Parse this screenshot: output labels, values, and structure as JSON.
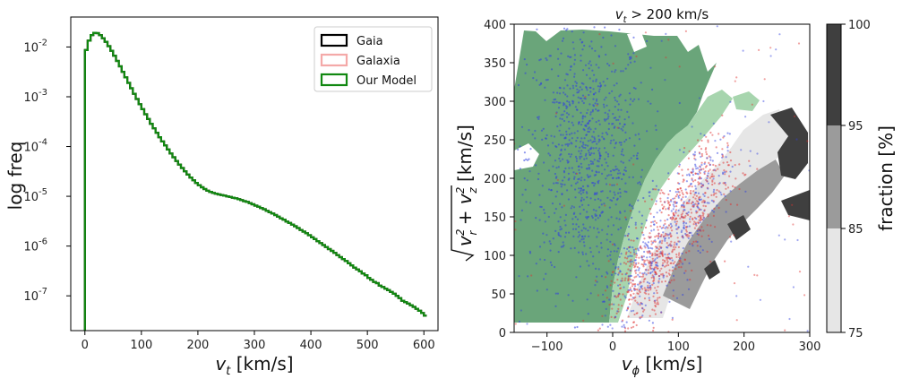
{
  "chart_data": [
    {
      "type": "line",
      "subtype": "step-histogram",
      "title": "",
      "xlabel_var": "v",
      "xlabel_sub": "t",
      "xlabel_unit": " [km/s]",
      "ylabel": "log freq",
      "xlim": [
        -25,
        625
      ],
      "ylim": [
        2e-08,
        0.04
      ],
      "yscale": "log",
      "grid": false,
      "legend_position": "top-right",
      "xticks": [
        0,
        100,
        200,
        300,
        400,
        500,
        600
      ],
      "yticks": [
        {
          "exp": -7,
          "label": "10",
          "sup": "-7"
        },
        {
          "exp": -6,
          "label": "10",
          "sup": "-6"
        },
        {
          "exp": -5,
          "label": "10",
          "sup": "-5"
        },
        {
          "exp": -4,
          "label": "10",
          "sup": "-4"
        },
        {
          "exp": -3,
          "label": "10",
          "sup": "-3"
        },
        {
          "exp": -2,
          "label": "10",
          "sup": "-2"
        }
      ],
      "series": [
        {
          "name": "Gaia",
          "color": "#000000",
          "x": [
            0,
            5,
            10,
            15,
            20,
            25,
            30,
            35,
            40,
            45,
            50,
            55,
            60,
            65,
            70,
            75,
            80,
            85,
            90,
            95,
            100,
            105,
            110,
            115,
            120,
            125,
            130,
            135,
            140,
            145,
            150,
            155,
            160,
            165,
            170,
            175,
            180,
            185,
            190,
            195,
            200,
            205,
            210,
            215,
            220,
            225,
            230,
            235,
            240,
            245,
            250,
            255,
            260,
            265,
            270,
            275,
            280,
            285,
            290,
            295,
            300,
            305,
            310,
            315,
            320,
            325,
            330,
            335,
            340,
            345,
            350,
            355,
            360,
            365,
            370,
            375,
            380,
            385,
            390,
            395,
            400,
            405,
            410,
            415,
            420,
            425,
            430,
            435,
            440,
            445,
            450,
            455,
            460,
            465,
            470,
            475,
            480,
            485,
            490,
            495,
            500,
            505,
            510,
            515,
            520,
            525,
            530,
            535,
            540,
            545,
            550,
            555,
            560,
            565,
            570,
            575,
            580,
            585,
            590,
            595,
            600
          ],
          "y": [
            0.00868,
            0.0134,
            0.0174,
            0.0193,
            0.019,
            0.0173,
            0.015,
            0.0127,
            0.0104,
            0.00839,
            0.00667,
            0.00525,
            0.00409,
            0.00317,
            0.00245,
            0.0019,
            0.00148,
            0.00115,
            0.000902,
            0.000709,
            0.000561,
            0.000446,
            0.000357,
            0.000287,
            0.000232,
            0.000189,
            0.000154,
            0.000127,
            0.000105,
            8.7e-05,
            7.25e-05,
            6.08e-05,
            5.12e-05,
            4.34e-05,
            3.7e-05,
            3.17e-05,
            2.74e-05,
            2.39e-05,
            2.1e-05,
            1.86e-05,
            1.67e-05,
            1.52e-05,
            1.4e-05,
            1.3e-05,
            1.23e-05,
            1.17e-05,
            1.13e-05,
            1.09e-05,
            1.06e-05,
            1.03e-05,
            1e-05,
            9.7e-06,
            9.4e-06,
            9.1e-06,
            8.7e-06,
            8.4e-06,
            8e-06,
            7.7e-06,
            7.3e-06,
            6.9e-06,
            6.5e-06,
            6.2e-06,
            5.8e-06,
            5.5e-06,
            5.1e-06,
            4.8e-06,
            4.5e-06,
            4.2e-06,
            3.9e-06,
            3.6e-06,
            3.4e-06,
            3.1e-06,
            2.9e-06,
            2.7e-06,
            2.5e-06,
            2.3e-06,
            2.1e-06,
            1.95e-06,
            1.8e-06,
            1.65e-06,
            1.5e-06,
            1.38e-06,
            1.26e-06,
            1.15e-06,
            1.05e-06,
            9.6e-07,
            8.7e-07,
            8e-07,
            7.3e-07,
            6.6e-07,
            6e-07,
            5.5e-07,
            5e-07,
            4.5e-07,
            4.1e-07,
            3.7e-07,
            3.4e-07,
            3.1e-07,
            2.8e-07,
            2.6e-07,
            2.3e-07,
            2.1e-07,
            1.9e-07,
            1.8e-07,
            1.6e-07,
            1.5e-07,
            1.4e-07,
            1.3e-07,
            1.2e-07,
            1.1e-07,
            1e-07,
            9e-08,
            8e-08,
            7.5e-08,
            7e-08,
            6.5e-08,
            6e-08,
            5.5e-08,
            5e-08,
            4.5e-08,
            4e-08
          ]
        },
        {
          "name": "Galaxia",
          "color": "#f4a9a8",
          "x": [
            0,
            5,
            10,
            15,
            20,
            25,
            30,
            35,
            40,
            45,
            50,
            55,
            60,
            65,
            70,
            75,
            80,
            85,
            90,
            95,
            100,
            105,
            110,
            115,
            120,
            125,
            130,
            135,
            140,
            145,
            150,
            155,
            160,
            165,
            170,
            175,
            180,
            185,
            190,
            195,
            200,
            205,
            210,
            215,
            220,
            225,
            230,
            235,
            240,
            245,
            250,
            255,
            260,
            265,
            270,
            275,
            280,
            285,
            290,
            295,
            300,
            305,
            310,
            315,
            320,
            325,
            330,
            335,
            340,
            345,
            350,
            355,
            360,
            365,
            370,
            375,
            380,
            385,
            390,
            395,
            400,
            405,
            410,
            415,
            420,
            425,
            430,
            435,
            440,
            445,
            450,
            455,
            460,
            465,
            470,
            475,
            480,
            485,
            490,
            495,
            500,
            505,
            510,
            515,
            520,
            525,
            530,
            535,
            540,
            545,
            550,
            555,
            560,
            565,
            570,
            575,
            580,
            585,
            590,
            595,
            600
          ],
          "y": [
            0.00868,
            0.0134,
            0.0174,
            0.0193,
            0.019,
            0.0173,
            0.015,
            0.0127,
            0.0104,
            0.00839,
            0.00667,
            0.00525,
            0.00409,
            0.00317,
            0.00245,
            0.0019,
            0.00148,
            0.00115,
            0.000902,
            0.000709,
            0.000561,
            0.000446,
            0.000357,
            0.000287,
            0.000232,
            0.000189,
            0.000154,
            0.000127,
            0.000105,
            8.7e-05,
            7.25e-05,
            6.08e-05,
            5.12e-05,
            4.34e-05,
            3.7e-05,
            3.17e-05,
            2.74e-05,
            2.39e-05,
            2.1e-05,
            1.86e-05,
            1.67e-05,
            1.52e-05,
            1.4e-05,
            1.3e-05,
            1.23e-05,
            1.17e-05,
            1.13e-05,
            1.09e-05,
            1.06e-05,
            1.03e-05,
            1e-05,
            9.7e-06,
            9.4e-06,
            9.1e-06,
            8.7e-06,
            8.4e-06,
            8e-06,
            7.7e-06,
            7.3e-06,
            6.9e-06,
            6.5e-06,
            6.2e-06,
            5.8e-06,
            5.5e-06,
            5.1e-06,
            4.8e-06,
            4.5e-06,
            4.2e-06,
            3.9e-06,
            3.6e-06,
            3.4e-06,
            3.1e-06,
            2.9e-06,
            2.7e-06,
            2.5e-06,
            2.3e-06,
            2.1e-06,
            1.95e-06,
            1.8e-06,
            1.65e-06,
            1.5e-06,
            1.38e-06,
            1.26e-06,
            1.15e-06,
            1.05e-06,
            9.6e-07,
            8.7e-07,
            8e-07,
            7.3e-07,
            6.6e-07,
            6e-07,
            5.5e-07,
            5e-07,
            4.5e-07,
            4.1e-07,
            3.7e-07,
            3.4e-07,
            3.1e-07,
            2.8e-07,
            2.6e-07,
            2.3e-07,
            2.1e-07,
            1.9e-07,
            1.8e-07,
            1.6e-07,
            1.5e-07,
            1.4e-07,
            1.3e-07,
            1.2e-07,
            1.1e-07,
            1e-07,
            9e-08,
            8e-08,
            7.5e-08,
            7e-08,
            6.5e-08,
            6e-08,
            5.5e-08,
            5e-08,
            4.5e-08,
            4e-08
          ]
        },
        {
          "name": "Our Model",
          "color": "#118811",
          "x": [
            0,
            5,
            10,
            15,
            20,
            25,
            30,
            35,
            40,
            45,
            50,
            55,
            60,
            65,
            70,
            75,
            80,
            85,
            90,
            95,
            100,
            105,
            110,
            115,
            120,
            125,
            130,
            135,
            140,
            145,
            150,
            155,
            160,
            165,
            170,
            175,
            180,
            185,
            190,
            195,
            200,
            205,
            210,
            215,
            220,
            225,
            230,
            235,
            240,
            245,
            250,
            255,
            260,
            265,
            270,
            275,
            280,
            285,
            290,
            295,
            300,
            305,
            310,
            315,
            320,
            325,
            330,
            335,
            340,
            345,
            350,
            355,
            360,
            365,
            370,
            375,
            380,
            385,
            390,
            395,
            400,
            405,
            410,
            415,
            420,
            425,
            430,
            435,
            440,
            445,
            450,
            455,
            460,
            465,
            470,
            475,
            480,
            485,
            490,
            495,
            500,
            505,
            510,
            515,
            520,
            525,
            530,
            535,
            540,
            545,
            550,
            555,
            560,
            565,
            570,
            575,
            580,
            585,
            590,
            595,
            600
          ],
          "y": [
            0.00868,
            0.0134,
            0.0174,
            0.0193,
            0.019,
            0.0173,
            0.015,
            0.0127,
            0.0104,
            0.00839,
            0.00667,
            0.00525,
            0.00409,
            0.00317,
            0.00245,
            0.0019,
            0.00148,
            0.00115,
            0.000902,
            0.000709,
            0.000561,
            0.000446,
            0.000357,
            0.000287,
            0.000232,
            0.000189,
            0.000154,
            0.000127,
            0.000105,
            8.7e-05,
            7.25e-05,
            6.08e-05,
            5.12e-05,
            4.34e-05,
            3.7e-05,
            3.17e-05,
            2.74e-05,
            2.39e-05,
            2.1e-05,
            1.86e-05,
            1.67e-05,
            1.52e-05,
            1.4e-05,
            1.3e-05,
            1.23e-05,
            1.17e-05,
            1.13e-05,
            1.09e-05,
            1.06e-05,
            1.03e-05,
            1e-05,
            9.7e-06,
            9.4e-06,
            9.1e-06,
            8.7e-06,
            8.4e-06,
            8e-06,
            7.7e-06,
            7.3e-06,
            6.9e-06,
            6.5e-06,
            6.2e-06,
            5.8e-06,
            5.5e-06,
            5.1e-06,
            4.8e-06,
            4.5e-06,
            4.2e-06,
            3.9e-06,
            3.6e-06,
            3.4e-06,
            3.1e-06,
            2.9e-06,
            2.7e-06,
            2.5e-06,
            2.3e-06,
            2.1e-06,
            1.95e-06,
            1.8e-06,
            1.65e-06,
            1.5e-06,
            1.38e-06,
            1.26e-06,
            1.15e-06,
            1.05e-06,
            9.6e-07,
            8.7e-07,
            8e-07,
            7.3e-07,
            6.6e-07,
            6e-07,
            5.5e-07,
            5e-07,
            4.5e-07,
            4.1e-07,
            3.7e-07,
            3.4e-07,
            3.1e-07,
            2.8e-07,
            2.6e-07,
            2.3e-07,
            2.1e-07,
            1.9e-07,
            1.8e-07,
            1.6e-07,
            1.5e-07,
            1.4e-07,
            1.3e-07,
            1.2e-07,
            1.1e-07,
            1e-07,
            9e-08,
            8e-08,
            7.5e-08,
            7e-08,
            6.5e-08,
            6e-08,
            5.5e-08,
            5e-08,
            4.5e-08,
            4e-08
          ]
        }
      ]
    },
    {
      "type": "scatter",
      "title_var": "v",
      "title_sub": "t",
      "title_rest": " > 200 km/s",
      "xlabel_var": "v",
      "xlabel_sub": "ϕ",
      "xlabel_unit": " [km/s]",
      "ylabel_unit": " [km/s]",
      "xlim": [
        -150,
        300
      ],
      "ylim": [
        0,
        400
      ],
      "grid": false,
      "xticks": [
        -100,
        0,
        100,
        200,
        300
      ],
      "yticks": [
        0,
        50,
        100,
        150,
        200,
        250,
        300,
        350,
        400
      ],
      "contour_green": "#6aa57a",
      "contour_green_light": "#a7d5ae",
      "contour_gray_levels": [
        "#e6e6e6",
        "#9b9b9b",
        "#3f3f3f"
      ],
      "scatter_series": [
        {
          "color": "#2f3fe0",
          "center_vphi": -40,
          "center_vperp": 230
        },
        {
          "color": "#e0302f",
          "center_vphi": 60,
          "center_vperp": 130
        }
      ],
      "colorbar": {
        "label": "fraction [%]",
        "ticks": [
          75,
          85,
          95,
          100
        ],
        "colors": [
          "#e6e6e6",
          "#9b9b9b",
          "#3f3f3f"
        ]
      }
    }
  ]
}
